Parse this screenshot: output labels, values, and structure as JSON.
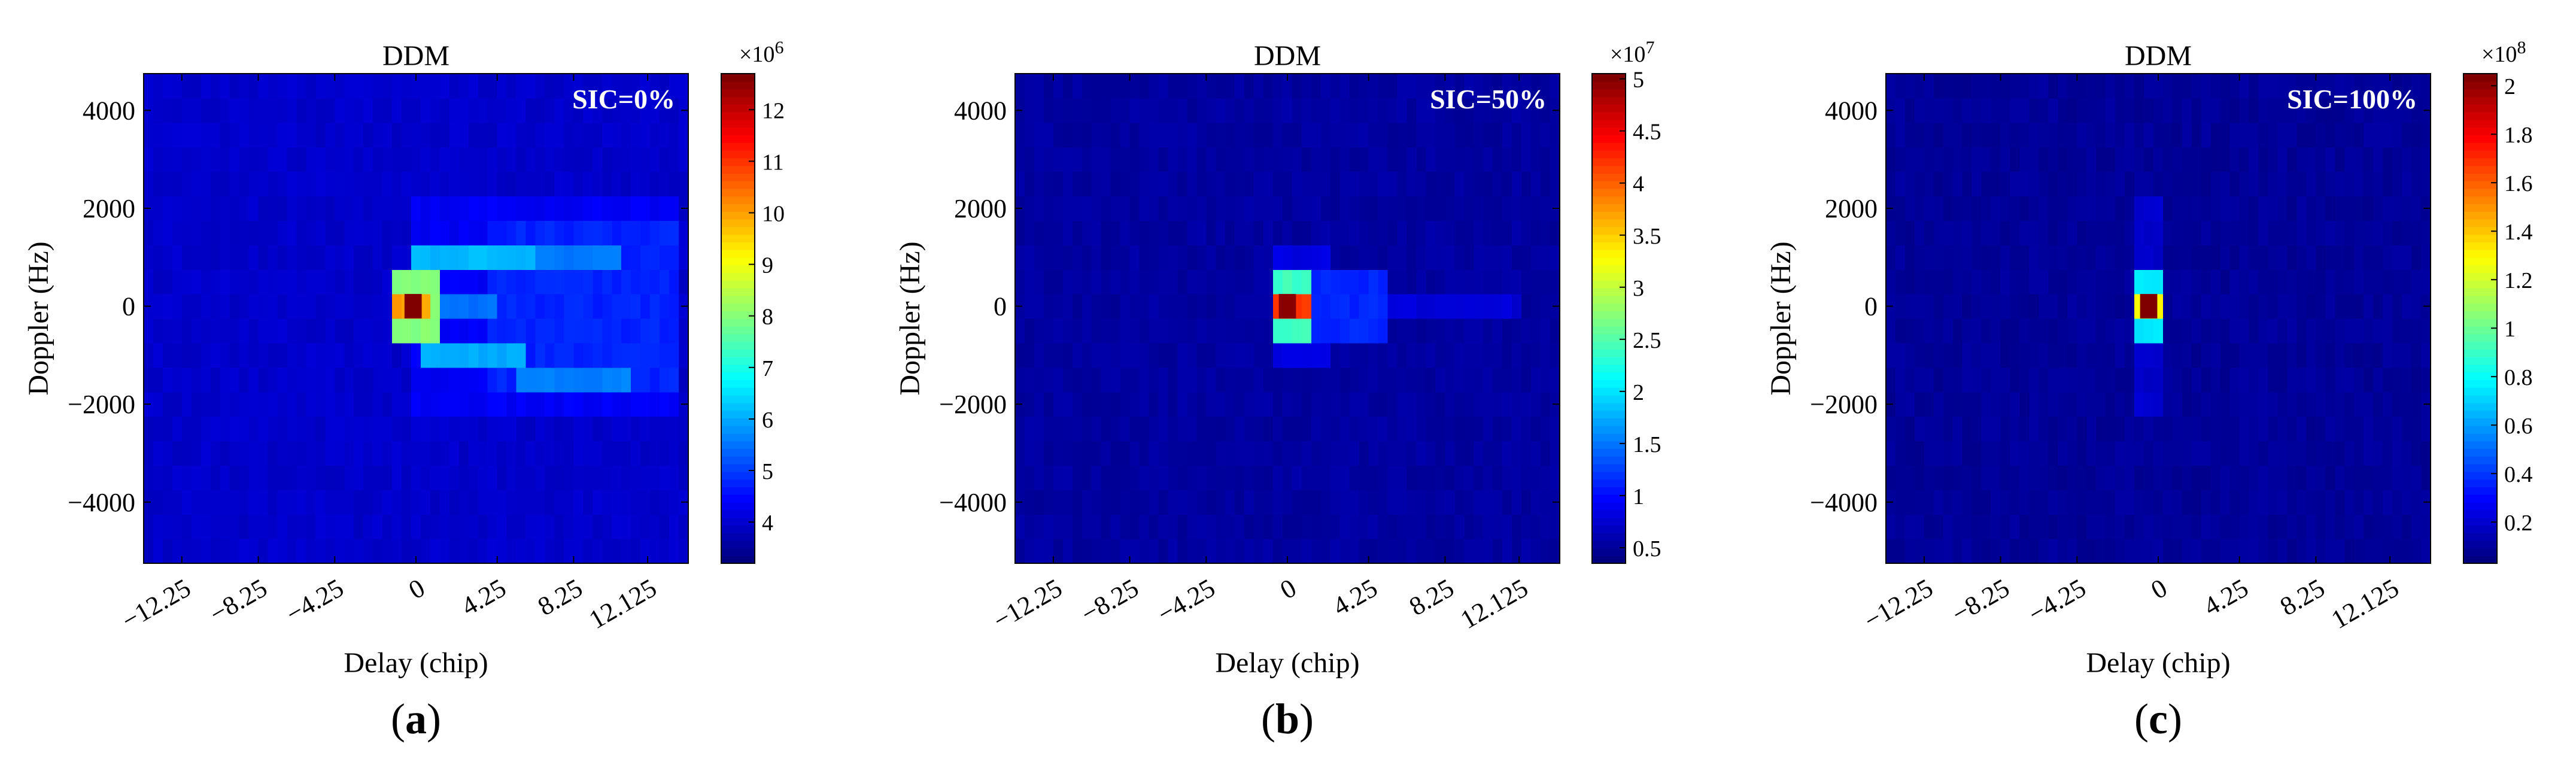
{
  "figure": {
    "panels": [
      {
        "label": "a",
        "annotation": "SIC=0%"
      },
      {
        "label": "b",
        "annotation": "SIC=50%"
      },
      {
        "label": "c",
        "annotation": "SIC=100%"
      }
    ]
  },
  "chart_data": [
    {
      "type": "heatmap",
      "title": "DDM",
      "xlabel": "Delay (chip)",
      "ylabel": "Doppler (Hz)",
      "xlim": [
        -14.25,
        14.25
      ],
      "ylim": [
        -5250,
        4750
      ],
      "x_ticks": [
        -12.25,
        -8.25,
        -4.25,
        0,
        4.25,
        8.25,
        12.125
      ],
      "x_tick_labels": [
        "−12.25",
        "−8.25",
        "−4.25",
        "0",
        "4.25",
        "8.25",
        "12.125"
      ],
      "y_ticks": [
        -4000,
        -2000,
        0,
        2000,
        4000
      ],
      "y_tick_labels": [
        "−4000",
        "−2000",
        "0",
        "2000",
        "4000"
      ],
      "annotation": "SIC=0%",
      "colorbar": {
        "min": 3.2,
        "max": 12.7,
        "exponent_label": "×10",
        "exponent": "6",
        "ticks": [
          4,
          5,
          6,
          7,
          8,
          9,
          10,
          11,
          12
        ],
        "tick_labels": [
          "4",
          "5",
          "6",
          "7",
          "8",
          "9",
          "10",
          "11",
          "12"
        ]
      },
      "base_level": 3.9,
      "peak": {
        "delay": -0.15,
        "doppler": 0,
        "value": 12.7
      },
      "features": [
        {
          "delay": [
            -1.0,
            1.0
          ],
          "doppler": [
            -750,
            750
          ],
          "value": 8.0
        },
        {
          "delay": [
            -1.0,
            0.9
          ],
          "doppler": [
            -250,
            250
          ],
          "value": 10.0
        },
        {
          "delay": [
            0.0,
            6.0
          ],
          "doppler": [
            750,
            1250
          ],
          "value": 6.1
        },
        {
          "delay": [
            6.0,
            10.5
          ],
          "doppler": [
            750,
            1250
          ],
          "value": 5.5
        },
        {
          "delay": [
            0.5,
            5.5
          ],
          "doppler": [
            -1250,
            -750
          ],
          "value": 6.0
        },
        {
          "delay": [
            5.5,
            11.0
          ],
          "doppler": [
            -1750,
            -1250
          ],
          "value": 5.6
        },
        {
          "delay": [
            1.0,
            4.0
          ],
          "doppler": [
            -250,
            250
          ],
          "value": 5.4
        },
        {
          "delay": [
            4.0,
            13.5
          ],
          "doppler": [
            -1500,
            1500
          ],
          "value": 4.7
        },
        {
          "delay": [
            0.0,
            13.5
          ],
          "doppler": [
            -2250,
            2250
          ],
          "value": 4.3
        }
      ]
    },
    {
      "type": "heatmap",
      "title": "DDM",
      "xlabel": "Delay (chip)",
      "ylabel": "Doppler (Hz)",
      "xlim": [
        -14.25,
        14.25
      ],
      "ylim": [
        -5250,
        4750
      ],
      "x_ticks": [
        -12.25,
        -8.25,
        -4.25,
        0,
        4.25,
        8.25,
        12.125
      ],
      "x_tick_labels": [
        "−12.25",
        "−8.25",
        "−4.25",
        "0",
        "4.25",
        "8.25",
        "12.125"
      ],
      "y_ticks": [
        -4000,
        -2000,
        0,
        2000,
        4000
      ],
      "y_tick_labels": [
        "−4000",
        "−2000",
        "0",
        "2000",
        "4000"
      ],
      "annotation": "SIC=50%",
      "colorbar": {
        "min": 0.35,
        "max": 5.05,
        "exponent_label": "×10",
        "exponent": "7",
        "ticks": [
          0.5,
          1,
          1.5,
          2,
          2.5,
          3,
          3.5,
          4,
          4.5,
          5
        ],
        "tick_labels": [
          "0.5",
          "1",
          "1.5",
          "2",
          "2.5",
          "3",
          "3.5",
          "4",
          "4.5",
          "5"
        ]
      },
      "base_level": 0.5,
      "peak": {
        "delay": 0,
        "doppler": 0,
        "value": 5.0
      },
      "features": [
        {
          "delay": [
            -0.8,
            1.2
          ],
          "doppler": [
            -750,
            750
          ],
          "value": 2.4
        },
        {
          "delay": [
            -0.8,
            1.0
          ],
          "doppler": [
            -250,
            250
          ],
          "value": 4.2
        },
        {
          "delay": [
            1.0,
            5.0
          ],
          "doppler": [
            -750,
            750
          ],
          "value": 1.1
        },
        {
          "delay": [
            5.0,
            12.0
          ],
          "doppler": [
            -250,
            250
          ],
          "value": 0.75
        },
        {
          "delay": [
            -0.5,
            2.0
          ],
          "doppler": [
            -1250,
            1250
          ],
          "value": 0.8
        }
      ]
    },
    {
      "type": "heatmap",
      "title": "DDM",
      "xlabel": "Delay (chip)",
      "ylabel": "Doppler (Hz)",
      "xlim": [
        -14.25,
        14.25
      ],
      "ylim": [
        -5250,
        4750
      ],
      "x_ticks": [
        -12.25,
        -8.25,
        -4.25,
        0,
        4.25,
        8.25,
        12.125
      ],
      "x_tick_labels": [
        "−12.25",
        "−8.25",
        "−4.25",
        "0",
        "4.25",
        "8.25",
        "12.125"
      ],
      "y_ticks": [
        -4000,
        -2000,
        0,
        2000,
        4000
      ],
      "y_tick_labels": [
        "−4000",
        "−2000",
        "0",
        "2000",
        "4000"
      ],
      "annotation": "SIC=100%",
      "colorbar": {
        "min": 0.03,
        "max": 2.05,
        "exponent_label": "×10",
        "exponent": "8",
        "ticks": [
          0.2,
          0.4,
          0.6,
          0.8,
          1,
          1.2,
          1.4,
          1.6,
          1.8,
          2
        ],
        "tick_labels": [
          "0.2",
          "0.4",
          "0.6",
          "0.8",
          "1",
          "1.2",
          "1.4",
          "1.6",
          "1.8",
          "2"
        ]
      },
      "base_level": 0.08,
      "peak": {
        "delay": -0.5,
        "doppler": 0,
        "value": 2.05
      },
      "features": [
        {
          "delay": [
            -1.0,
            0.0
          ],
          "doppler": [
            -750,
            750
          ],
          "value": 0.75
        },
        {
          "delay": [
            -1.0,
            0.0
          ],
          "doppler": [
            -250,
            250
          ],
          "value": 1.3
        },
        {
          "delay": [
            -1.0,
            0.0
          ],
          "doppler": [
            -2250,
            2250
          ],
          "value": 0.18
        }
      ]
    }
  ]
}
